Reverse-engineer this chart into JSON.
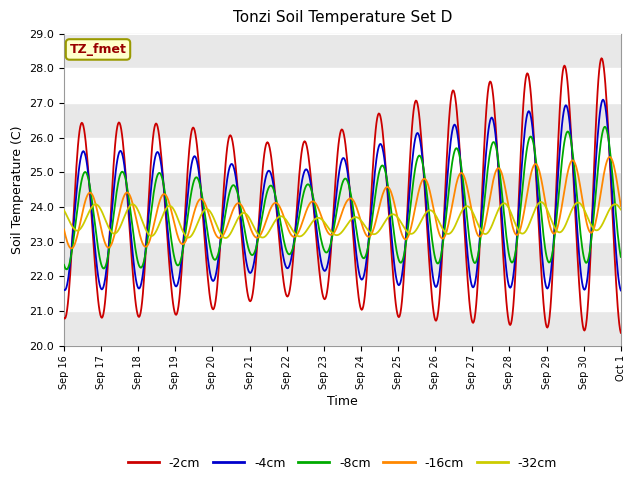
{
  "title": "Tonzi Soil Temperature Set D",
  "xlabel": "Time",
  "ylabel": "Soil Temperature (C)",
  "annotation": "TZ_fmet",
  "ylim": [
    20.0,
    29.0
  ],
  "yticks": [
    20.0,
    21.0,
    22.0,
    23.0,
    24.0,
    25.0,
    26.0,
    27.0,
    28.0,
    29.0
  ],
  "xtick_labels": [
    "Sep 16",
    "Sep 17",
    "Sep 18",
    "Sep 19",
    "Sep 20",
    "Sep 21",
    "Sep 22",
    "Sep 23",
    "Sep 24",
    "Sep 25",
    "Sep 26",
    "Sep 27",
    "Sep 28",
    "Sep 29",
    "Sep 30",
    "Oct 1"
  ],
  "series_colors": [
    "#cc0000",
    "#0000cc",
    "#00aa00",
    "#ff8800",
    "#cccc00"
  ],
  "series_labels": [
    "-2cm",
    "-4cm",
    "-8cm",
    "-16cm",
    "-32cm"
  ],
  "fig_bg_color": "#ffffff",
  "plot_bg_color": "#ffffff",
  "grid_color": "#dddddd",
  "annotation_box_color": "#ffffcc",
  "annotation_text_color": "#990000",
  "annotation_border_color": "#999900",
  "title_fontsize": 11,
  "axis_fontsize": 9,
  "tick_fontsize": 8
}
